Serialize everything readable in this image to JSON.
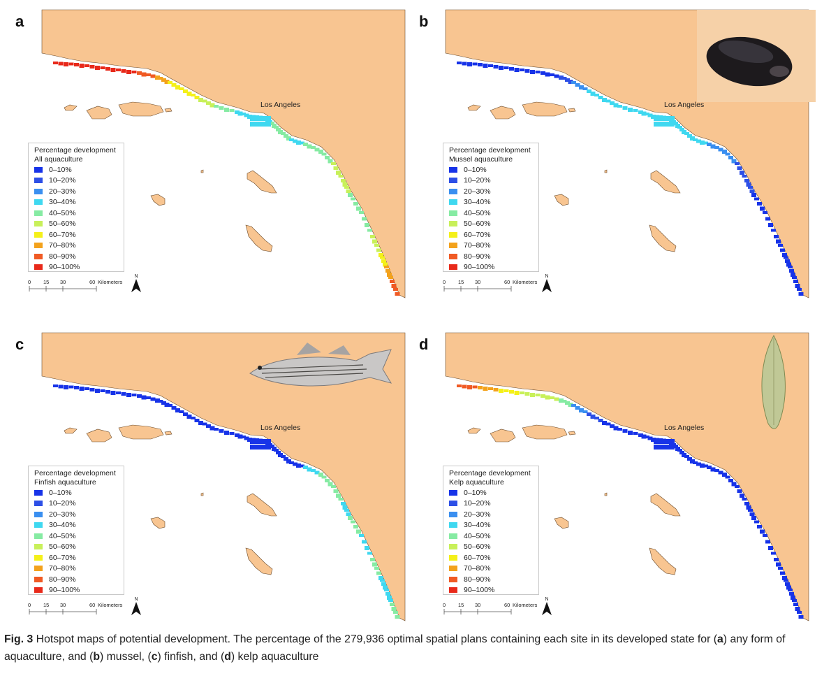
{
  "colors": {
    "land": "#f8c591",
    "ocean": "#ffffff",
    "land_border": "#6a4a2a",
    "ramp": [
      "#1733e8",
      "#2d4fe6",
      "#3a8ff0",
      "#3fd8f0",
      "#86eba3",
      "#c8f05a",
      "#f4f01a",
      "#f3a21c",
      "#f05a24",
      "#e8291a"
    ]
  },
  "legend": {
    "heading": "Percentage development",
    "classes": [
      "0–10%",
      "10–20%",
      "20–30%",
      "30–40%",
      "40–50%",
      "50–60%",
      "60–70%",
      "70–80%",
      "80–90%",
      "90–100%"
    ]
  },
  "scale_bar": {
    "ticks": [
      "0",
      "15",
      "30",
      "60"
    ],
    "unit": "Kilometers"
  },
  "north_label": "N",
  "city_label": "Los Angeles",
  "panels": [
    {
      "letter": "a",
      "subtitle": "All aquaculture",
      "illustration": "none"
    },
    {
      "letter": "b",
      "subtitle": "Mussel aquaculture",
      "illustration": "mussel-shell"
    },
    {
      "letter": "c",
      "subtitle": "Finfish aquaculture",
      "illustration": "striped-bass"
    },
    {
      "letter": "d",
      "subtitle": "Kelp aquaculture",
      "illustration": "kelp-blade"
    }
  ],
  "caption": {
    "label": "Fig. 3",
    "t1": " Hotspot maps of potential development. The percentage of the 279,936 optimal spatial plans containing each site in its developed state for (",
    "a": "a",
    "t2": ") any form of aquaculture, and (",
    "b": "b",
    "t3": ") mussel, (",
    "c": "c",
    "t4": ") finfish, and (",
    "d": "d",
    "t5": ") kelp aquaculture"
  }
}
